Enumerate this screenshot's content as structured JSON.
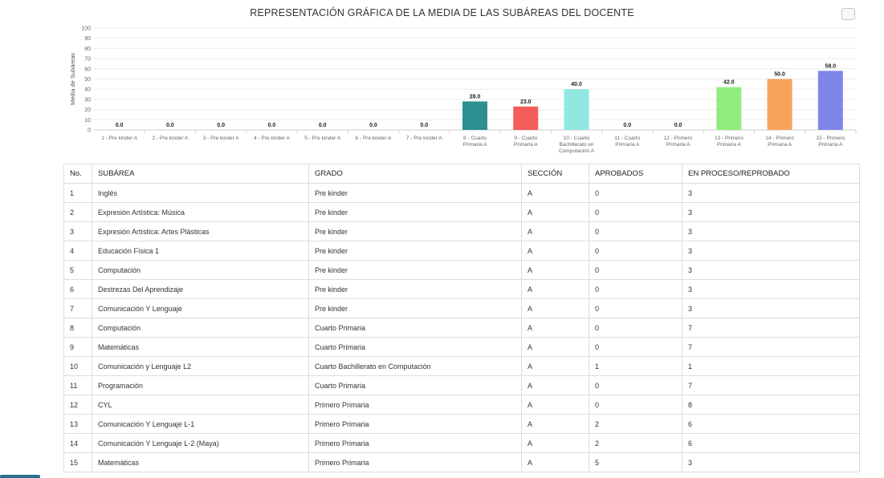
{
  "chart_data": {
    "type": "bar",
    "title": "REPRESENTACIÓN GRÁFICA DE LA MEDIA DE LAS SUBÁREAS DEL DOCENTE",
    "ylabel": "Media de Subáreas",
    "xlabel": "",
    "ylim": [
      0,
      100
    ],
    "yticks": [
      0,
      10,
      20,
      30,
      40,
      50,
      60,
      70,
      80,
      90,
      100
    ],
    "grid": true,
    "categories": [
      [
        "1 - Pre kinder A"
      ],
      [
        "2 - Pre kinder A"
      ],
      [
        "3 - Pre kinder A"
      ],
      [
        "4 - Pre kinder A"
      ],
      [
        "5 - Pre kinder A"
      ],
      [
        "6 - Pre kinder A"
      ],
      [
        "7 - Pre kinder A"
      ],
      [
        "8 - Cuarto",
        "Primaria A"
      ],
      [
        "9 - Cuarto",
        "Primaria A"
      ],
      [
        "10 - Cuarto",
        "Bachillerato en",
        "Computación A"
      ],
      [
        "11 - Cuarto",
        "Primaria A"
      ],
      [
        "12 - Primero",
        "Primaria A"
      ],
      [
        "13 - Primero",
        "Primaria A"
      ],
      [
        "14 - Primero",
        "Primaria A"
      ],
      [
        "15 - Primero",
        "Primaria A"
      ]
    ],
    "values": [
      0,
      0,
      0,
      0,
      0,
      0,
      0,
      28,
      23,
      40,
      0,
      0,
      42,
      50,
      58
    ],
    "data_labels": [
      "0.0",
      "0.0",
      "0.0",
      "0.0",
      "0.0",
      "0.0",
      "0.0",
      "28.0",
      "23.0",
      "40.0",
      "0.0",
      "0.0",
      "42.0",
      "50.0",
      "58.0"
    ],
    "colors": [
      "#7cb5ec",
      "#434348",
      "#90ed7d",
      "#f7a35c",
      "#8085e9",
      "#f15c80",
      "#e4d354",
      "#2b908f",
      "#f45b5b",
      "#91e8e1",
      "#7cb5ec",
      "#434348",
      "#90ed7d",
      "#f7a35c",
      "#8085e9"
    ]
  },
  "table": {
    "headers": [
      "No.",
      "SUBÁREA",
      "GRADO",
      "SECCIÓN",
      "APROBADOS",
      "EN PROCESO/REPROBADO"
    ],
    "rows": [
      [
        "1",
        "Inglés",
        "Pre kinder",
        "A",
        "0",
        "3"
      ],
      [
        "2",
        "Expresión Artística: Música",
        "Pre kinder",
        "A",
        "0",
        "3"
      ],
      [
        "3",
        "Expresión Artística: Artes Plásticas",
        "Pre kinder",
        "A",
        "0",
        "3"
      ],
      [
        "4",
        "Educación Física 1",
        "Pre kinder",
        "A",
        "0",
        "3"
      ],
      [
        "5",
        "Computación",
        "Pre kinder",
        "A",
        "0",
        "3"
      ],
      [
        "6",
        "Destrezas Del Aprendizaje",
        "Pre kinder",
        "A",
        "0",
        "3"
      ],
      [
        "7",
        "Comunicación Y Lenguaje",
        "Pre kinder",
        "A",
        "0",
        "3"
      ],
      [
        "8",
        "Computación",
        "Cuarto Primaria",
        "A",
        "0",
        "7"
      ],
      [
        "9",
        "Matemáticas",
        "Cuarto Primaria",
        "A",
        "0",
        "7"
      ],
      [
        "10",
        "Comunicación y Lenguaje L2",
        "Cuarto Bachillerato en Computación",
        "A",
        "1",
        "1"
      ],
      [
        "11",
        "Programación",
        "Cuarto Primaria",
        "A",
        "0",
        "7"
      ],
      [
        "12",
        "CYL",
        "Primero Primaria",
        "A",
        "0",
        "8"
      ],
      [
        "13",
        "Comunicación Y Lenguaje L-1",
        "Primero Primaria",
        "A",
        "2",
        "6"
      ],
      [
        "14",
        "Comunicación Y Lenguaje L-2 (Maya)",
        "Primero Primaria",
        "A",
        "2",
        "6"
      ],
      [
        "15",
        "Matemáticas",
        "Primero Primaria",
        "A",
        "5",
        "3"
      ]
    ]
  }
}
